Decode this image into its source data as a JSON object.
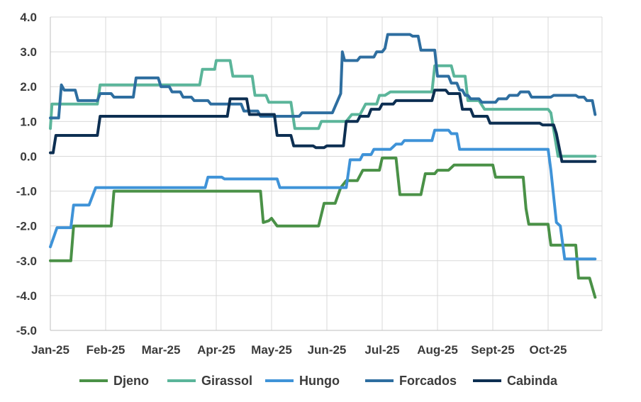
{
  "chart_data": {
    "type": "line",
    "title": "",
    "xlabel": "",
    "ylabel": "",
    "ylim": [
      -5.0,
      4.0
    ],
    "y_ticks": [
      "4.0",
      "3.0",
      "2.0",
      "1.0",
      "0.0",
      "-1.0",
      "-2.0",
      "-3.0",
      "-4.0",
      "-5.0"
    ],
    "x_ticks": [
      "Jan-25",
      "Feb-25",
      "Mar-25",
      "Apr-25",
      "May-25",
      "Jun-25",
      "Jul-25",
      "Aug-25",
      "Sept-25",
      "Oct-25"
    ],
    "x_range_months": [
      0,
      10
    ],
    "grid": true,
    "legend_position": "bottom",
    "series": [
      {
        "name": "Djeno",
        "color": "#4a9147",
        "points": [
          [
            0.0,
            -3.0
          ],
          [
            0.37,
            -3.0
          ],
          [
            0.42,
            -2.0
          ],
          [
            1.1,
            -2.0
          ],
          [
            1.15,
            -1.0
          ],
          [
            3.8,
            -1.0
          ],
          [
            3.85,
            -1.9
          ],
          [
            3.95,
            -1.85
          ],
          [
            4.0,
            -1.78
          ],
          [
            4.1,
            -2.0
          ],
          [
            4.85,
            -2.0
          ],
          [
            4.95,
            -1.35
          ],
          [
            5.15,
            -1.35
          ],
          [
            5.25,
            -0.9
          ],
          [
            5.35,
            -0.7
          ],
          [
            5.55,
            -0.7
          ],
          [
            5.65,
            -0.4
          ],
          [
            5.95,
            -0.4
          ],
          [
            6.0,
            -0.05
          ],
          [
            6.25,
            -0.05
          ],
          [
            6.32,
            -1.1
          ],
          [
            6.7,
            -1.1
          ],
          [
            6.78,
            -0.5
          ],
          [
            6.95,
            -0.5
          ],
          [
            7.0,
            -0.4
          ],
          [
            7.2,
            -0.4
          ],
          [
            7.3,
            -0.25
          ],
          [
            8.0,
            -0.25
          ],
          [
            8.05,
            -0.6
          ],
          [
            8.55,
            -0.6
          ],
          [
            8.6,
            -1.5
          ],
          [
            8.65,
            -1.95
          ],
          [
            9.0,
            -1.95
          ],
          [
            9.05,
            -2.55
          ],
          [
            9.5,
            -2.55
          ],
          [
            9.55,
            -3.5
          ],
          [
            9.75,
            -3.5
          ],
          [
            9.85,
            -4.05
          ]
        ]
      },
      {
        "name": "Girassol",
        "color": "#5bb59a",
        "points": [
          [
            0.0,
            0.8
          ],
          [
            0.03,
            1.5
          ],
          [
            0.85,
            1.5
          ],
          [
            0.9,
            2.05
          ],
          [
            2.7,
            2.05
          ],
          [
            2.75,
            2.5
          ],
          [
            2.97,
            2.5
          ],
          [
            3.0,
            2.75
          ],
          [
            3.25,
            2.75
          ],
          [
            3.3,
            2.3
          ],
          [
            3.65,
            2.3
          ],
          [
            3.7,
            1.75
          ],
          [
            3.9,
            1.75
          ],
          [
            3.95,
            1.55
          ],
          [
            4.35,
            1.55
          ],
          [
            4.42,
            0.8
          ],
          [
            4.85,
            0.8
          ],
          [
            4.9,
            1.0
          ],
          [
            5.35,
            1.0
          ],
          [
            5.45,
            1.2
          ],
          [
            5.6,
            1.2
          ],
          [
            5.7,
            1.5
          ],
          [
            5.9,
            1.5
          ],
          [
            5.95,
            1.75
          ],
          [
            6.05,
            1.75
          ],
          [
            6.15,
            1.85
          ],
          [
            6.9,
            1.85
          ],
          [
            6.95,
            2.6
          ],
          [
            7.25,
            2.6
          ],
          [
            7.3,
            2.3
          ],
          [
            7.5,
            2.3
          ],
          [
            7.55,
            1.6
          ],
          [
            7.75,
            1.6
          ],
          [
            7.85,
            1.35
          ],
          [
            9.0,
            1.35
          ],
          [
            9.05,
            1.25
          ],
          [
            9.18,
            0.0
          ],
          [
            9.85,
            0.0
          ]
        ]
      },
      {
        "name": "Hungo",
        "color": "#3f93d8",
        "points": [
          [
            0.0,
            -2.6
          ],
          [
            0.12,
            -2.05
          ],
          [
            0.37,
            -2.05
          ],
          [
            0.42,
            -1.4
          ],
          [
            0.7,
            -1.4
          ],
          [
            0.82,
            -0.9
          ],
          [
            2.8,
            -0.9
          ],
          [
            2.85,
            -0.6
          ],
          [
            3.1,
            -0.6
          ],
          [
            3.15,
            -0.65
          ],
          [
            4.1,
            -0.65
          ],
          [
            4.15,
            -0.9
          ],
          [
            5.35,
            -0.9
          ],
          [
            5.42,
            -0.1
          ],
          [
            5.6,
            -0.1
          ],
          [
            5.65,
            0.05
          ],
          [
            5.8,
            0.05
          ],
          [
            5.85,
            0.2
          ],
          [
            6.15,
            0.2
          ],
          [
            6.25,
            0.35
          ],
          [
            6.35,
            0.35
          ],
          [
            6.4,
            0.45
          ],
          [
            6.9,
            0.45
          ],
          [
            6.95,
            0.75
          ],
          [
            7.2,
            0.75
          ],
          [
            7.25,
            0.65
          ],
          [
            7.35,
            0.65
          ],
          [
            7.4,
            0.2
          ],
          [
            9.0,
            0.2
          ],
          [
            9.05,
            -0.4
          ],
          [
            9.15,
            -1.9
          ],
          [
            9.22,
            -2.0
          ],
          [
            9.3,
            -2.95
          ],
          [
            9.85,
            -2.95
          ]
        ]
      },
      {
        "name": "Forcados",
        "color": "#2e6ea0",
        "points": [
          [
            0.0,
            1.1
          ],
          [
            0.15,
            1.1
          ],
          [
            0.2,
            2.05
          ],
          [
            0.25,
            1.9
          ],
          [
            0.45,
            1.9
          ],
          [
            0.5,
            1.6
          ],
          [
            0.85,
            1.6
          ],
          [
            0.9,
            1.8
          ],
          [
            1.1,
            1.8
          ],
          [
            1.15,
            1.7
          ],
          [
            1.5,
            1.7
          ],
          [
            1.55,
            2.25
          ],
          [
            1.95,
            2.25
          ],
          [
            2.0,
            2.0
          ],
          [
            2.15,
            2.0
          ],
          [
            2.2,
            1.85
          ],
          [
            2.35,
            1.85
          ],
          [
            2.4,
            1.7
          ],
          [
            2.55,
            1.7
          ],
          [
            2.6,
            1.6
          ],
          [
            2.85,
            1.6
          ],
          [
            2.9,
            1.5
          ],
          [
            3.45,
            1.5
          ],
          [
            3.5,
            1.3
          ],
          [
            3.75,
            1.3
          ],
          [
            3.8,
            1.15
          ],
          [
            4.5,
            1.15
          ],
          [
            4.55,
            1.25
          ],
          [
            5.1,
            1.25
          ],
          [
            5.25,
            1.8
          ],
          [
            5.28,
            3.0
          ],
          [
            5.32,
            2.75
          ],
          [
            5.55,
            2.75
          ],
          [
            5.6,
            2.85
          ],
          [
            5.85,
            2.85
          ],
          [
            5.9,
            3.0
          ],
          [
            6.0,
            3.0
          ],
          [
            6.05,
            3.1
          ],
          [
            6.1,
            3.5
          ],
          [
            6.5,
            3.5
          ],
          [
            6.55,
            3.45
          ],
          [
            6.65,
            3.45
          ],
          [
            6.7,
            3.05
          ],
          [
            6.95,
            3.05
          ],
          [
            7.0,
            2.3
          ],
          [
            7.2,
            2.3
          ],
          [
            7.25,
            2.1
          ],
          [
            7.35,
            2.1
          ],
          [
            7.4,
            1.9
          ],
          [
            7.45,
            1.9
          ],
          [
            7.5,
            1.75
          ],
          [
            7.55,
            1.75
          ],
          [
            7.6,
            1.65
          ],
          [
            7.75,
            1.65
          ],
          [
            7.8,
            1.55
          ],
          [
            8.05,
            1.55
          ],
          [
            8.1,
            1.65
          ],
          [
            8.25,
            1.65
          ],
          [
            8.3,
            1.75
          ],
          [
            8.45,
            1.75
          ],
          [
            8.5,
            1.85
          ],
          [
            8.65,
            1.85
          ],
          [
            8.7,
            1.7
          ],
          [
            9.05,
            1.7
          ],
          [
            9.1,
            1.75
          ],
          [
            9.5,
            1.75
          ],
          [
            9.55,
            1.7
          ],
          [
            9.65,
            1.7
          ],
          [
            9.7,
            1.6
          ],
          [
            9.8,
            1.6
          ],
          [
            9.85,
            1.2
          ]
        ]
      },
      {
        "name": "Cabinda",
        "color": "#0d2f52",
        "points": [
          [
            0.0,
            0.1
          ],
          [
            0.05,
            0.1
          ],
          [
            0.1,
            0.6
          ],
          [
            0.85,
            0.6
          ],
          [
            0.9,
            1.15
          ],
          [
            3.2,
            1.15
          ],
          [
            3.25,
            1.65
          ],
          [
            3.55,
            1.65
          ],
          [
            3.6,
            1.2
          ],
          [
            4.05,
            1.2
          ],
          [
            4.1,
            0.6
          ],
          [
            4.35,
            0.6
          ],
          [
            4.4,
            0.3
          ],
          [
            4.75,
            0.3
          ],
          [
            4.8,
            0.25
          ],
          [
            4.95,
            0.25
          ],
          [
            5.0,
            0.3
          ],
          [
            5.3,
            0.3
          ],
          [
            5.35,
            1.0
          ],
          [
            5.55,
            1.0
          ],
          [
            5.6,
            1.15
          ],
          [
            5.75,
            1.15
          ],
          [
            5.8,
            1.35
          ],
          [
            5.95,
            1.35
          ],
          [
            6.0,
            1.5
          ],
          [
            6.2,
            1.5
          ],
          [
            6.25,
            1.6
          ],
          [
            6.9,
            1.6
          ],
          [
            6.95,
            1.9
          ],
          [
            7.15,
            1.9
          ],
          [
            7.2,
            1.8
          ],
          [
            7.4,
            1.8
          ],
          [
            7.45,
            1.35
          ],
          [
            7.6,
            1.35
          ],
          [
            7.65,
            1.15
          ],
          [
            7.9,
            1.15
          ],
          [
            7.95,
            0.95
          ],
          [
            8.85,
            0.95
          ],
          [
            8.9,
            0.9
          ],
          [
            9.1,
            0.9
          ],
          [
            9.15,
            0.65
          ],
          [
            9.25,
            -0.15
          ],
          [
            9.85,
            -0.15
          ]
        ]
      }
    ]
  }
}
